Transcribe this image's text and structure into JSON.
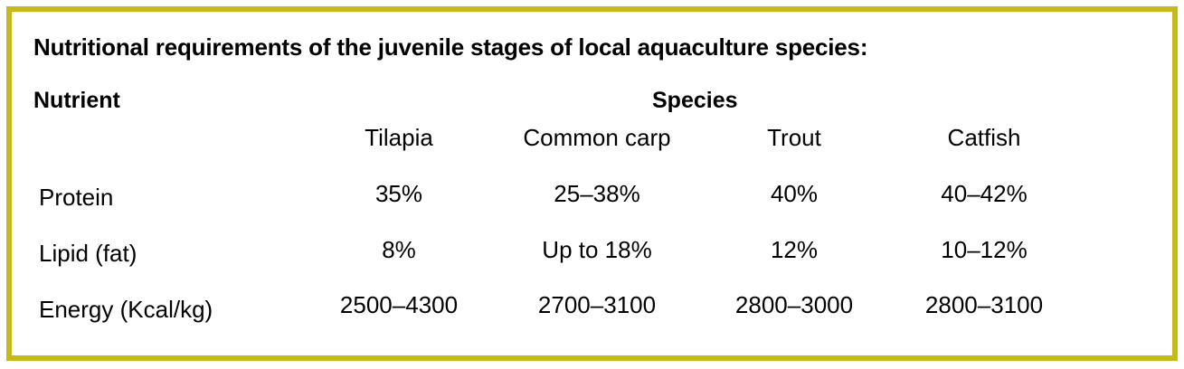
{
  "title": "Nutritional requirements of the juvenile stages of local aquaculture species:",
  "headers": {
    "nutrient": "Nutrient",
    "species": "Species"
  },
  "species": [
    "Tilapia",
    "Common carp",
    "Trout",
    "Catfish"
  ],
  "rows": [
    {
      "label": "Protein",
      "values": [
        "35%",
        "25–38%",
        "40%",
        "40–42%"
      ]
    },
    {
      "label": "Lipid (fat)",
      "values": [
        "8%",
        "Up to 18%",
        "12%",
        "10–12%"
      ]
    },
    {
      "label": "Energy (Kcal/kg)",
      "values": [
        "2500–4300",
        "2700–3100",
        "2800–3000",
        "2800–3100"
      ]
    }
  ],
  "colors": {
    "border": "#c8b91a"
  }
}
